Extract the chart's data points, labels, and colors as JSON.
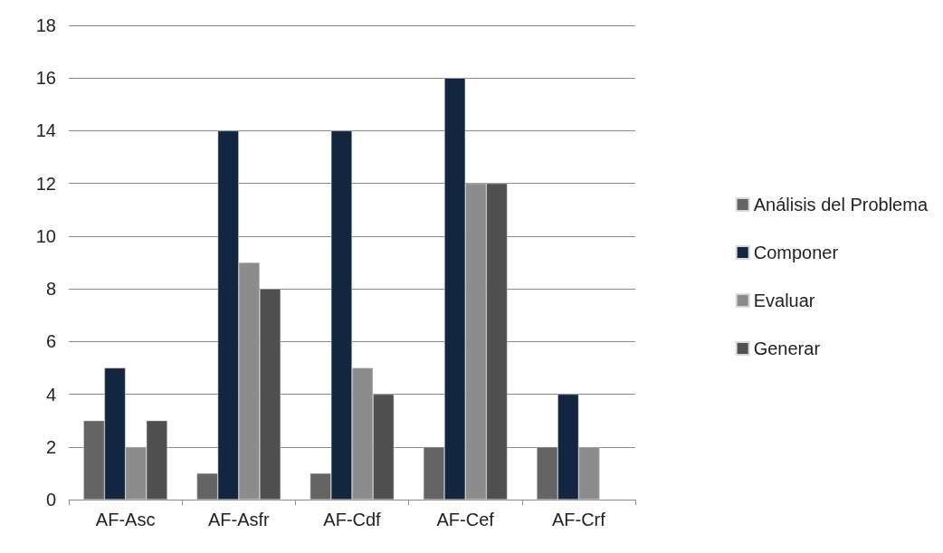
{
  "chart_data": {
    "type": "bar",
    "categories": [
      "AF-Asc",
      "AF-Asfr",
      "AF-Cdf",
      "AF-Cef",
      "AF-Crf"
    ],
    "series": [
      {
        "name": "Análisis del Problema",
        "color": "#646464",
        "values": [
          3,
          1,
          1,
          2,
          2
        ]
      },
      {
        "name": "Componer",
        "color": "#12263f",
        "values": [
          5,
          14,
          14,
          16,
          4
        ]
      },
      {
        "name": "Evaluar",
        "color": "#8c8c8c",
        "values": [
          2,
          9,
          5,
          12,
          2
        ]
      },
      {
        "name": "Generar",
        "color": "#505050",
        "values": [
          3,
          8,
          4,
          12,
          null
        ]
      }
    ],
    "ylim": [
      0,
      18
    ],
    "yticks": [
      0,
      2,
      4,
      6,
      8,
      10,
      12,
      14,
      16,
      18
    ],
    "grid": "y",
    "legend": "right"
  }
}
